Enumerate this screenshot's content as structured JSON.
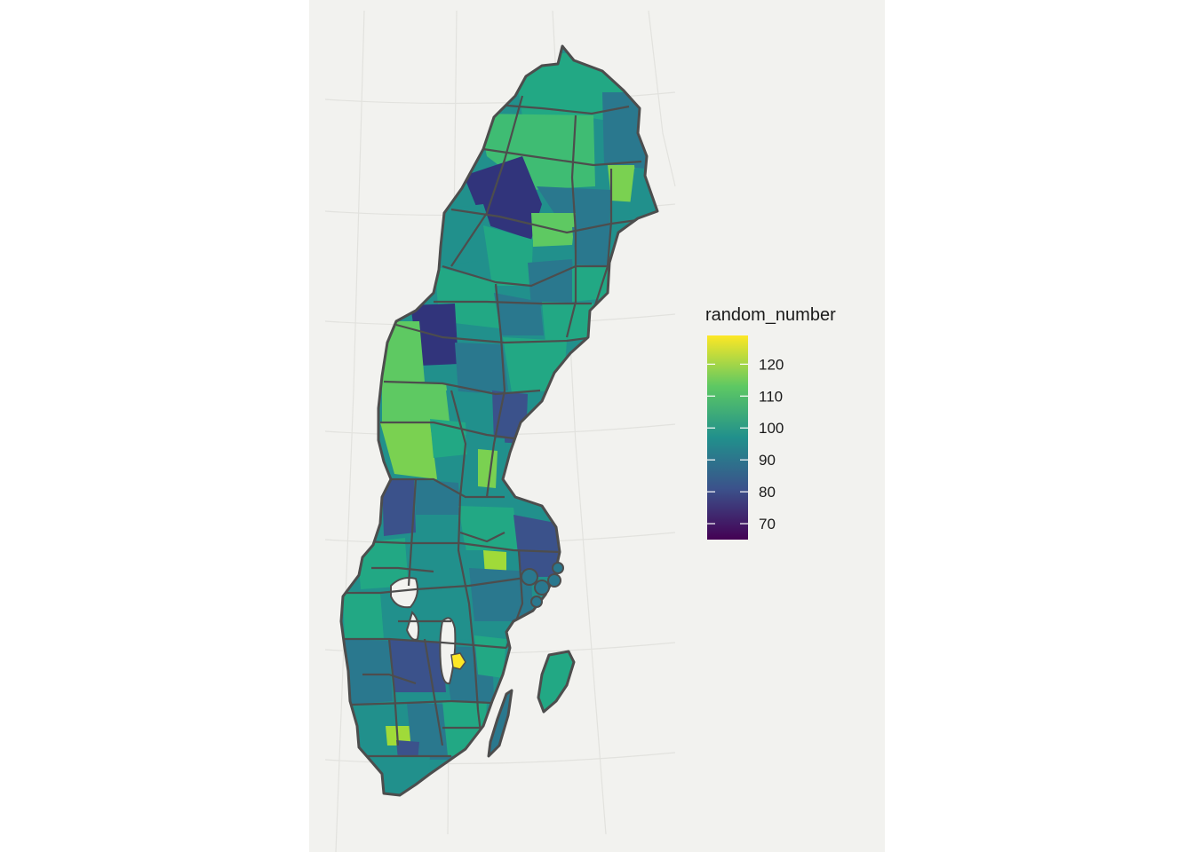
{
  "map": {
    "type": "choropleth",
    "region": "Sweden",
    "unit": "municipality",
    "background_color": "#f2f2ef",
    "border_color": "#4d4d4d",
    "graticule_color": "#e2e2de",
    "colormap": "viridis"
  },
  "legend": {
    "title": "random_number",
    "min": 65,
    "max": 129,
    "ticks": [
      {
        "value": 70,
        "label": "70"
      },
      {
        "value": 80,
        "label": "80"
      },
      {
        "value": 90,
        "label": "90"
      },
      {
        "value": 100,
        "label": "100"
      },
      {
        "value": 110,
        "label": "110"
      },
      {
        "value": 120,
        "label": "120"
      }
    ],
    "stops": [
      "#440154",
      "#3b528b",
      "#21908c",
      "#5dc863",
      "#fde725"
    ]
  }
}
